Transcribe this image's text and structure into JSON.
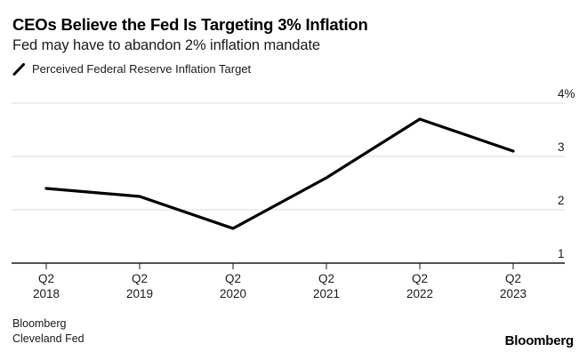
{
  "header": {
    "title": "CEOs Believe the Fed Is Targeting 3% Inflation",
    "subtitle": "Fed may have to abandon 2% inflation mandate"
  },
  "legend": {
    "items": [
      {
        "icon": "line-mark-icon",
        "label": "Perceived Federal Reserve Inflation Target",
        "color": "#000000"
      }
    ]
  },
  "chart_data": {
    "type": "line",
    "title": "CEOs Believe the Fed Is Targeting 3% Inflation",
    "subtitle": "Fed may have to abandon 2% inflation mandate",
    "categories": [
      "Q2 2018",
      "Q2 2019",
      "Q2 2020",
      "Q2 2021",
      "Q2 2022",
      "Q2 2023"
    ],
    "x_tick_lines": [
      [
        "Q2",
        "2018"
      ],
      [
        "Q2",
        "2019"
      ],
      [
        "Q2",
        "2020"
      ],
      [
        "Q2",
        "2021"
      ],
      [
        "Q2",
        "2022"
      ],
      [
        "Q2",
        "2023"
      ]
    ],
    "series": [
      {
        "name": "Perceived Federal Reserve Inflation Target",
        "values": [
          2.4,
          2.25,
          1.65,
          2.6,
          3.7,
          3.1
        ],
        "color": "#000000"
      }
    ],
    "ylabel": "",
    "xlabel": "",
    "ylim": [
      1,
      4
    ],
    "y_ticks": [
      1,
      2,
      3,
      4
    ],
    "y_tick_labels": [
      "1",
      "2",
      "3",
      "4%"
    ],
    "grid": "horizontal",
    "legend_position": "top-left"
  },
  "footer": {
    "sources": [
      "Bloomberg",
      "Cleveland Fed"
    ],
    "brand": "Bloomberg"
  },
  "colors": {
    "background": "#ffffff",
    "line": "#000000",
    "grid": "#dcdcdc",
    "axis": "#1a1a1a",
    "tick": "#1a1a1a",
    "text": "#1a1a1a",
    "title": "#000000"
  }
}
